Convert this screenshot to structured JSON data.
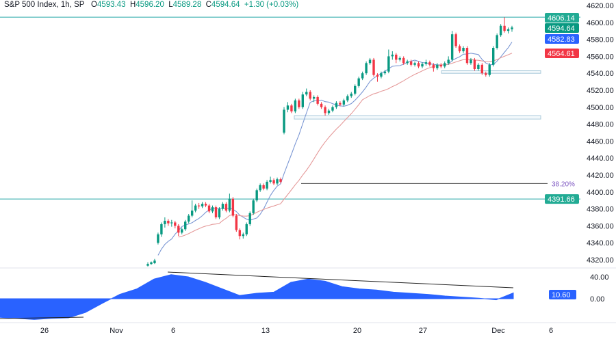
{
  "header": {
    "symbol": "S&P 500 Index, 1h, SP",
    "open_label": "O",
    "open": "4593.43",
    "high_label": "H",
    "high": "4596.20",
    "low_label": "L",
    "low": "4589.28",
    "close_label": "C",
    "close": "4594.64",
    "change": "+1.30 (+0.03%)"
  },
  "colors": {
    "up": "#089981",
    "down": "#f23645",
    "fast_ma": "#7b97d4",
    "slow_ma": "#e59a9a",
    "level_line": "#26a6a6",
    "zone": "#a9c9da",
    "fib": "#7e57c2",
    "indicator": "#2962ff"
  },
  "chart_data": [
    {
      "type": "candlestick",
      "y_axis": {
        "range": [
          4310,
          4626
        ],
        "ticks": [
          "4620.00",
          "4600.00",
          "4580.00",
          "4560.00",
          "4540.00",
          "4520.00",
          "4500.00",
          "4480.00",
          "4460.00",
          "4440.00",
          "4420.00",
          "4400.00",
          "4380.00",
          "4360.00",
          "4340.00",
          "4320.00"
        ]
      },
      "x_axis": {
        "ticks": [
          "26",
          "Nov",
          "6",
          "13",
          "20",
          "27",
          "Dec",
          "6"
        ]
      },
      "candles_ohlc": [
        [
          4313,
          4317,
          4312,
          4315
        ],
        [
          4315,
          4318,
          4314,
          4317
        ],
        [
          4316,
          4321,
          4315,
          4319
        ],
        [
          4340,
          4352,
          4338,
          4350
        ],
        [
          4350,
          4364,
          4347,
          4362
        ],
        [
          4362,
          4370,
          4358,
          4366
        ],
        [
          4366,
          4368,
          4360,
          4363
        ],
        [
          4363,
          4367,
          4359,
          4364
        ],
        [
          4364,
          4366,
          4357,
          4360
        ],
        [
          4360,
          4362,
          4348,
          4352
        ],
        [
          4352,
          4358,
          4350,
          4356
        ],
        [
          4356,
          4367,
          4354,
          4365
        ],
        [
          4365,
          4374,
          4363,
          4372
        ],
        [
          4372,
          4390,
          4370,
          4378
        ],
        [
          4378,
          4386,
          4376,
          4384
        ],
        [
          4384,
          4387,
          4380,
          4383
        ],
        [
          4383,
          4388,
          4381,
          4386
        ],
        [
          4386,
          4388,
          4382,
          4384
        ],
        [
          4384,
          4386,
          4375,
          4377
        ],
        [
          4377,
          4384,
          4375,
          4382
        ],
        [
          4382,
          4384,
          4368,
          4370
        ],
        [
          4370,
          4382,
          4368,
          4380
        ],
        [
          4380,
          4388,
          4378,
          4386
        ],
        [
          4386,
          4388,
          4376,
          4378
        ],
        [
          4378,
          4398,
          4376,
          4392
        ],
        [
          4392,
          4394,
          4370,
          4372
        ],
        [
          4372,
          4374,
          4353,
          4355
        ],
        [
          4355,
          4357,
          4344,
          4348
        ],
        [
          4348,
          4352,
          4345,
          4350
        ],
        [
          4350,
          4364,
          4348,
          4362
        ],
        [
          4362,
          4377,
          4360,
          4375
        ],
        [
          4375,
          4392,
          4373,
          4390
        ],
        [
          4390,
          4404,
          4388,
          4402
        ],
        [
          4402,
          4410,
          4400,
          4408
        ],
        [
          4408,
          4410,
          4402,
          4404
        ],
        [
          4404,
          4414,
          4402,
          4412
        ],
        [
          4412,
          4418,
          4410,
          4414
        ],
        [
          4414,
          4416,
          4408,
          4410
        ],
        [
          4410,
          4417,
          4408,
          4415
        ],
        [
          4415,
          4417,
          4410,
          4412
        ],
        [
          4470,
          4500,
          4468,
          4497
        ],
        [
          4497,
          4506,
          4494,
          4502
        ],
        [
          4502,
          4504,
          4493,
          4495
        ],
        [
          4495,
          4510,
          4493,
          4508
        ],
        [
          4508,
          4510,
          4498,
          4500
        ],
        [
          4500,
          4518,
          4498,
          4515
        ],
        [
          4515,
          4522,
          4513,
          4518
        ],
        [
          4518,
          4520,
          4508,
          4510
        ],
        [
          4510,
          4514,
          4506,
          4512
        ],
        [
          4512,
          4514,
          4502,
          4504
        ],
        [
          4504,
          4506,
          4498,
          4500
        ],
        [
          4500,
          4502,
          4490,
          4493
        ],
        [
          4493,
          4498,
          4491,
          4496
        ],
        [
          4496,
          4502,
          4494,
          4500
        ],
        [
          4500,
          4507,
          4498,
          4505
        ],
        [
          4505,
          4507,
          4501,
          4503
        ],
        [
          4503,
          4510,
          4501,
          4508
        ],
        [
          4508,
          4515,
          4506,
          4513
        ],
        [
          4513,
          4518,
          4511,
          4516
        ],
        [
          4516,
          4527,
          4514,
          4525
        ],
        [
          4525,
          4536,
          4523,
          4534
        ],
        [
          4534,
          4542,
          4532,
          4540
        ],
        [
          4540,
          4554,
          4538,
          4552
        ],
        [
          4552,
          4558,
          4550,
          4556
        ],
        [
          4556,
          4558,
          4536,
          4538
        ],
        [
          4538,
          4540,
          4530,
          4536
        ],
        [
          4536,
          4542,
          4534,
          4540
        ],
        [
          4540,
          4544,
          4538,
          4542
        ],
        [
          4542,
          4568,
          4540,
          4560
        ],
        [
          4560,
          4566,
          4556,
          4562
        ],
        [
          4562,
          4564,
          4552,
          4556
        ],
        [
          4556,
          4560,
          4554,
          4558
        ],
        [
          4558,
          4560,
          4550,
          4552
        ],
        [
          4552,
          4556,
          4550,
          4554
        ],
        [
          4554,
          4556,
          4548,
          4550
        ],
        [
          4550,
          4554,
          4548,
          4552
        ],
        [
          4552,
          4554,
          4546,
          4548
        ],
        [
          4548,
          4553,
          4546,
          4551
        ],
        [
          4551,
          4556,
          4549,
          4553
        ],
        [
          4553,
          4555,
          4548,
          4550
        ],
        [
          4550,
          4552,
          4542,
          4546
        ],
        [
          4546,
          4552,
          4544,
          4550
        ],
        [
          4550,
          4552,
          4546,
          4548
        ],
        [
          4548,
          4554,
          4546,
          4552
        ],
        [
          4552,
          4560,
          4550,
          4556
        ],
        [
          4556,
          4590,
          4554,
          4586
        ],
        [
          4586,
          4588,
          4570,
          4572
        ],
        [
          4572,
          4574,
          4564,
          4566
        ],
        [
          4566,
          4572,
          4564,
          4570
        ],
        [
          4570,
          4572,
          4550,
          4552
        ],
        [
          4552,
          4558,
          4550,
          4556
        ],
        [
          4556,
          4558,
          4543,
          4545
        ],
        [
          4545,
          4552,
          4543,
          4550
        ],
        [
          4550,
          4552,
          4538,
          4540
        ],
        [
          4540,
          4542,
          4536,
          4538
        ],
        [
          4538,
          4552,
          4536,
          4550
        ],
        [
          4550,
          4572,
          4548,
          4570
        ],
        [
          4570,
          4587,
          4568,
          4585
        ],
        [
          4585,
          4598,
          4583,
          4596
        ],
        [
          4596,
          4606,
          4588,
          4590
        ],
        [
          4590,
          4594,
          4587,
          4592
        ],
        [
          4592,
          4596,
          4589,
          4594
        ]
      ],
      "price_labels": [
        {
          "value": "4606.14",
          "color": "#22ab94"
        },
        {
          "value": "4594.64",
          "color": "#089981"
        },
        {
          "value": "4582.83",
          "color": "#2962ff"
        },
        {
          "value": "4564.61",
          "color": "#f23645"
        },
        {
          "value": "4391.66",
          "color": "#22ab94"
        }
      ],
      "horizontal_levels": [
        4606.14,
        4391.66
      ],
      "zones": [
        [
          4540,
          4543
        ],
        [
          4486,
          4490
        ]
      ],
      "fib_level": {
        "label": "38.20%",
        "value": 4410
      }
    },
    {
      "type": "area",
      "y_axis": {
        "range": [
          -40,
          50
        ],
        "ticks": [
          "40.00",
          "0.00"
        ]
      },
      "values": [
        -34,
        -36,
        -38,
        -36,
        -35,
        -25,
        -8,
        8,
        18,
        36,
        44,
        40,
        30,
        18,
        6,
        10,
        12,
        30,
        36,
        32,
        22,
        18,
        16,
        12,
        10,
        8,
        5,
        3,
        1,
        -2,
        10.6
      ],
      "last_value": "10.60"
    }
  ]
}
